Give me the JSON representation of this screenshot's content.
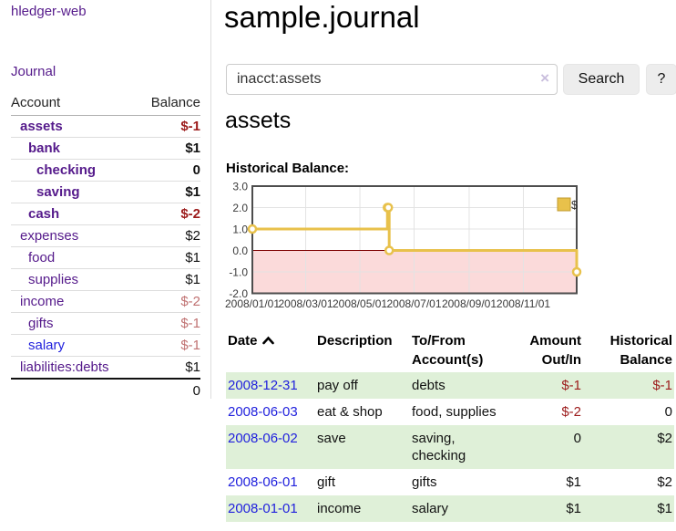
{
  "sidebar": {
    "brand": "hledger-web",
    "nav_journal": "Journal",
    "accounts_table": {
      "headers": [
        "Account",
        "Balance"
      ],
      "rows": [
        {
          "account": "assets",
          "depth": 1,
          "bold": true,
          "balance": "$-1",
          "balance_negative": true,
          "balance_emphasis": "strong",
          "link_color": "purple"
        },
        {
          "account": "bank",
          "depth": 2,
          "bold": true,
          "balance": "$1",
          "balance_negative": false,
          "balance_emphasis": "strong",
          "link_color": "purple"
        },
        {
          "account": "checking",
          "depth": 3,
          "bold": true,
          "balance": "0",
          "balance_negative": false,
          "balance_emphasis": "strong",
          "link_color": "purple"
        },
        {
          "account": "saving",
          "depth": 3,
          "bold": true,
          "balance": "$1",
          "balance_negative": false,
          "balance_emphasis": "strong",
          "link_color": "purple"
        },
        {
          "account": "cash",
          "depth": 2,
          "bold": true,
          "balance": "$-2",
          "balance_negative": true,
          "balance_emphasis": "strong",
          "link_color": "purple"
        },
        {
          "account": "expenses",
          "depth": 1,
          "bold": false,
          "balance": "$2",
          "balance_negative": false,
          "balance_emphasis": "normal",
          "link_color": "purple"
        },
        {
          "account": "food",
          "depth": 2,
          "bold": false,
          "balance": "$1",
          "balance_negative": false,
          "balance_emphasis": "normal",
          "link_color": "purple"
        },
        {
          "account": "supplies",
          "depth": 2,
          "bold": false,
          "balance": "$1",
          "balance_negative": false,
          "balance_emphasis": "normal",
          "link_color": "purple"
        },
        {
          "account": "income",
          "depth": 1,
          "bold": false,
          "balance": "$-2",
          "balance_negative": true,
          "balance_emphasis": "dim",
          "link_color": "purple"
        },
        {
          "account": "gifts",
          "depth": 2,
          "bold": false,
          "balance": "$-1",
          "balance_negative": true,
          "balance_emphasis": "dim",
          "link_color": "purple"
        },
        {
          "account": "salary",
          "depth": 2,
          "bold": false,
          "balance": "$-1",
          "balance_negative": true,
          "balance_emphasis": "dim",
          "link_color": "blue"
        },
        {
          "account": "liabilities:debts",
          "depth": 1,
          "bold": false,
          "balance": "$1",
          "balance_negative": false,
          "balance_emphasis": "normal",
          "link_color": "purple"
        }
      ],
      "total": "0"
    }
  },
  "header": {
    "title": "sample.journal"
  },
  "search": {
    "query": "inacct:assets",
    "clear_icon": "×",
    "button_label": "Search",
    "help_label": "?"
  },
  "main": {
    "account_heading": "assets",
    "chart_label": "Historical Balance:"
  },
  "register": {
    "columns": [
      "Date",
      "Description",
      "To/From Account(s)",
      "Amount Out/In",
      "Historical Balance"
    ],
    "sort": {
      "column": "Date",
      "direction": "ascending"
    },
    "rows": [
      {
        "date": "2008-12-31",
        "description": "pay off",
        "accounts": "debts",
        "amount": "$-1",
        "amount_negative": true,
        "balance": "$-1",
        "balance_negative": true
      },
      {
        "date": "2008-06-03",
        "description": "eat & shop",
        "accounts": "food, supplies",
        "amount": "$-2",
        "amount_negative": true,
        "balance": "0",
        "balance_negative": false
      },
      {
        "date": "2008-06-02",
        "description": "save",
        "accounts": "saving, checking",
        "amount": "0",
        "amount_negative": false,
        "balance": "$2",
        "balance_negative": false
      },
      {
        "date": "2008-06-01",
        "description": "gift",
        "accounts": "gifts",
        "amount": "$1",
        "amount_negative": false,
        "balance": "$2",
        "balance_negative": false
      },
      {
        "date": "2008-01-01",
        "description": "income",
        "accounts": "salary",
        "amount": "$1",
        "amount_negative": false,
        "balance": "$1",
        "balance_negative": false
      }
    ]
  },
  "chart_data": {
    "type": "line",
    "step": true,
    "title": "Historical Balance:",
    "series": [
      {
        "name": "$",
        "x": [
          "2008-01-01",
          "2008-06-01",
          "2008-06-02",
          "2008-06-03",
          "2008-12-31"
        ],
        "y": [
          1,
          2,
          2,
          0,
          -1
        ]
      }
    ],
    "xlim": [
      "2008-01-01",
      "2008-12-31"
    ],
    "ylim": [
      -2,
      3
    ],
    "yticks": [
      "3.0",
      "2.0",
      "1.0",
      "0.0",
      "-1.0",
      "-2.0"
    ],
    "xticks": [
      "2008/01/01",
      "2008/03/01",
      "2008/05/01",
      "2008/07/01",
      "2008/09/01",
      "2008/11/01"
    ],
    "grid": true,
    "legend_position": "top-right",
    "legend_label": "$",
    "line_color": "#e8c14b",
    "marker_fill": "#ffffff",
    "below_zero_fill": "#fbdada",
    "zero_line_color": "#7e0000"
  },
  "colors": {
    "link_purple": "#551a8b",
    "link_blue": "#2222dd",
    "negative_strong": "#9c1b1b",
    "negative_dim": "#c07272",
    "row_shade_green": "#dff0d8",
    "chart_line_gold": "#e8c14b",
    "chart_negative_region": "#fbdada",
    "chart_zero_line": "#7e0000",
    "button_gray": "#ededed"
  }
}
